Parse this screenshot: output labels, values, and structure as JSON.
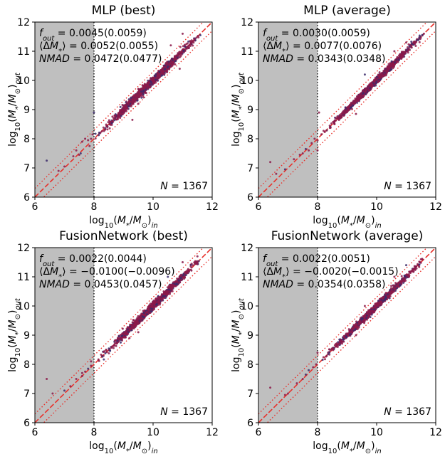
{
  "figure": {
    "background": "#ffffff"
  },
  "style": {
    "shade_color": "#bfbfbf",
    "point_color": "#8b1a4a",
    "point_alt_color": "#3b2a6b",
    "line_color": "#e8302a",
    "frame_color": "#000000"
  },
  "chart_data": [
    {
      "type": "scatter",
      "title": "MLP (best)",
      "xlabel": "log10(M*/M⊙)in",
      "ylabel": "log10(M*/M⊙)out",
      "xlim": [
        6,
        12
      ],
      "ylim": [
        6,
        12
      ],
      "xticks": [
        6,
        8,
        10,
        12
      ],
      "yticks": [
        6,
        7,
        8,
        9,
        10,
        11,
        12
      ],
      "shaded_below_x": 8,
      "reference_line": {
        "x": [
          6,
          12
        ],
        "y": [
          6,
          12
        ]
      },
      "bound_lines": [
        {
          "offset": 0.3
        },
        {
          "offset": -0.3
        }
      ],
      "stats": [
        {
          "label": "f_out",
          "value": "= 0.0045(0.0059)"
        },
        {
          "label": "⟨ΔM*⟩",
          "value": "= 0.0052(0.0055)"
        },
        {
          "label": "NMAD",
          "value": "= 0.0472(0.0477)"
        }
      ],
      "n_label": "N = 1367",
      "n_points": 1367,
      "scatter_sigma": 0.065,
      "outliers": [
        [
          6.4,
          7.25
        ],
        [
          7.3,
          7.4
        ],
        [
          7.6,
          7.9
        ],
        [
          7.7,
          8.0
        ],
        [
          7.95,
          8.15
        ],
        [
          8.0,
          8.9
        ],
        [
          9.3,
          8.65
        ],
        [
          9.5,
          9.2
        ],
        [
          10.6,
          11.2
        ],
        [
          11.0,
          11.6
        ],
        [
          11.6,
          11.55
        ],
        [
          10.9,
          10.4
        ],
        [
          11.4,
          11.4
        ]
      ],
      "low_points": [
        [
          6.8,
          6.9
        ],
        [
          7.0,
          7.05
        ],
        [
          7.4,
          7.6
        ],
        [
          7.55,
          7.5
        ],
        [
          7.8,
          7.95
        ],
        [
          7.85,
          7.75
        ],
        [
          7.9,
          8.0
        ],
        [
          7.5,
          7.45
        ]
      ]
    },
    {
      "type": "scatter",
      "title": "MLP (average)",
      "xlabel": "log10(M*/M⊙)in",
      "ylabel": "log10(M*/M⊙)out",
      "xlim": [
        6,
        12
      ],
      "ylim": [
        6,
        12
      ],
      "xticks": [
        6,
        8,
        10,
        12
      ],
      "yticks": [
        6,
        7,
        8,
        9,
        10,
        11,
        12
      ],
      "shaded_below_x": 8,
      "reference_line": {
        "x": [
          6,
          12
        ],
        "y": [
          6,
          12
        ]
      },
      "bound_lines": [
        {
          "offset": 0.3
        },
        {
          "offset": -0.3
        }
      ],
      "stats": [
        {
          "label": "f_out",
          "value": "= 0.0030(0.0059)"
        },
        {
          "label": "⟨ΔM*⟩",
          "value": "= 0.0077(0.0076)"
        },
        {
          "label": "NMAD",
          "value": "= 0.0343(0.0348)"
        }
      ],
      "n_label": "N = 1367",
      "n_points": 1367,
      "scatter_sigma": 0.05,
      "outliers": [
        [
          6.4,
          7.2
        ],
        [
          6.9,
          6.95
        ],
        [
          7.5,
          7.5
        ],
        [
          8.0,
          7.6
        ],
        [
          8.05,
          8.9
        ],
        [
          9.3,
          8.85
        ],
        [
          9.6,
          10.2
        ],
        [
          10.6,
          11.0
        ],
        [
          11.0,
          11.3
        ],
        [
          11.6,
          11.6
        ]
      ],
      "low_points": [
        [
          6.6,
          6.8
        ],
        [
          7.2,
          7.3
        ],
        [
          7.4,
          7.45
        ],
        [
          7.6,
          7.65
        ],
        [
          7.8,
          7.85
        ],
        [
          7.9,
          8.0
        ],
        [
          7.7,
          7.6
        ]
      ]
    },
    {
      "type": "scatter",
      "title": "FusionNetwork (best)",
      "xlabel": "log10(M*/M⊙)in",
      "ylabel": "log10(M*/M⊙)out",
      "xlim": [
        6,
        12
      ],
      "ylim": [
        6,
        12
      ],
      "xticks": [
        6,
        8,
        10,
        12
      ],
      "yticks": [
        6,
        7,
        8,
        9,
        10,
        11,
        12
      ],
      "shaded_below_x": 8,
      "reference_line": {
        "x": [
          6,
          12
        ],
        "y": [
          6,
          12
        ]
      },
      "bound_lines": [
        {
          "offset": 0.3
        },
        {
          "offset": -0.3
        }
      ],
      "stats": [
        {
          "label": "f_out",
          "value": "= 0.0022(0.0044)"
        },
        {
          "label": "⟨ΔM*⟩",
          "value": "= −0.0100(−0.0096)"
        },
        {
          "label": "NMAD",
          "value": "= 0.0453(0.0457)"
        }
      ],
      "n_label": "N = 1367",
      "n_points": 1367,
      "scatter_sigma": 0.06,
      "outliers": [
        [
          6.4,
          7.5
        ],
        [
          6.6,
          7.0
        ],
        [
          7.0,
          7.1
        ],
        [
          7.6,
          7.7
        ],
        [
          7.9,
          8.1
        ],
        [
          9.2,
          8.9
        ],
        [
          9.5,
          9.1
        ],
        [
          10.5,
          11.0
        ],
        [
          11.0,
          11.5
        ],
        [
          11.5,
          11.7
        ]
      ],
      "low_points": [
        [
          7.2,
          7.25
        ],
        [
          7.4,
          7.5
        ],
        [
          7.6,
          7.6
        ],
        [
          7.8,
          7.85
        ],
        [
          7.9,
          7.95
        ],
        [
          7.7,
          7.75
        ]
      ]
    },
    {
      "type": "scatter",
      "title": "FusionNetwork (average)",
      "xlabel": "log10(M*/M⊙)in",
      "ylabel": "log10(M*/M⊙)out",
      "xlim": [
        6,
        12
      ],
      "ylim": [
        6,
        12
      ],
      "xticks": [
        6,
        8,
        10,
        12
      ],
      "yticks": [
        6,
        7,
        8,
        9,
        10,
        11,
        12
      ],
      "shaded_below_x": 8,
      "reference_line": {
        "x": [
          6,
          12
        ],
        "y": [
          6,
          12
        ]
      },
      "bound_lines": [
        {
          "offset": 0.3
        },
        {
          "offset": -0.3
        }
      ],
      "stats": [
        {
          "label": "f_out",
          "value": "= 0.0022(0.0051)"
        },
        {
          "label": "⟨ΔM*⟩",
          "value": "= −0.0020(−0.0015)"
        },
        {
          "label": "NMAD",
          "value": "= 0.0354(0.0358)"
        }
      ],
      "n_label": "N = 1367",
      "n_points": 1367,
      "scatter_sigma": 0.05,
      "outliers": [
        [
          6.4,
          7.2
        ],
        [
          7.0,
          7.0
        ],
        [
          7.6,
          7.65
        ],
        [
          8.0,
          8.4
        ],
        [
          9.3,
          9.0
        ],
        [
          9.6,
          10.0
        ],
        [
          10.6,
          11.0
        ],
        [
          11.0,
          11.4
        ],
        [
          11.5,
          11.6
        ]
      ],
      "low_points": [
        [
          6.9,
          6.95
        ],
        [
          7.3,
          7.35
        ],
        [
          7.5,
          7.5
        ],
        [
          7.7,
          7.8
        ],
        [
          7.85,
          7.9
        ],
        [
          7.95,
          8.0
        ]
      ]
    }
  ]
}
